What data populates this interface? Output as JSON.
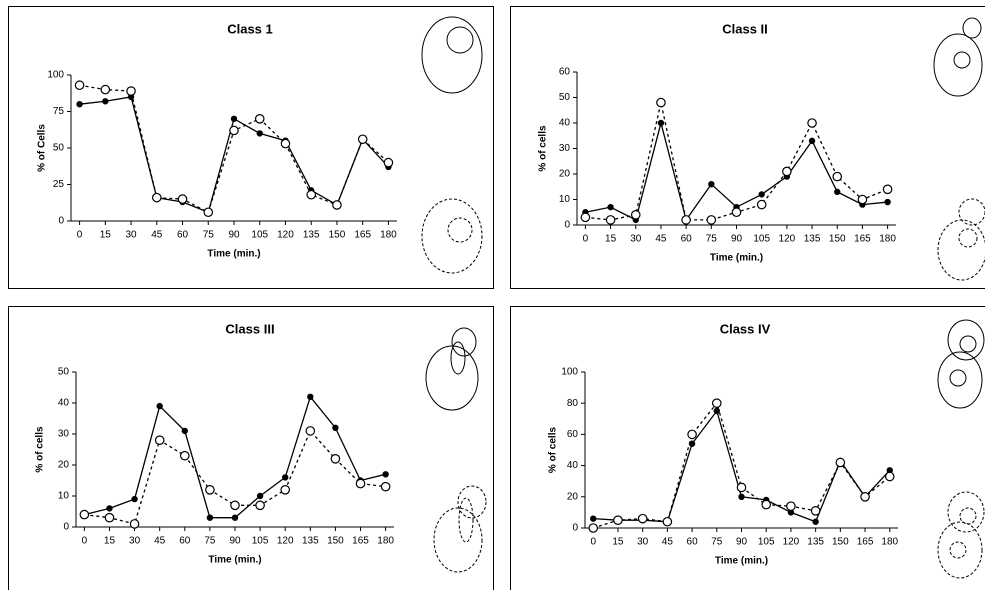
{
  "chart_data": [
    {
      "type": "line",
      "title": "Class 1",
      "xlabel": "Time (min.)",
      "ylabel": "% of Cells",
      "x": [
        0,
        15,
        30,
        45,
        60,
        75,
        90,
        105,
        120,
        135,
        150,
        165,
        180
      ],
      "xlim": [
        -5,
        185
      ],
      "xticks": [
        0,
        15,
        30,
        45,
        60,
        75,
        90,
        105,
        120,
        135,
        150,
        165,
        180
      ],
      "ylim": [
        0,
        100
      ],
      "yticks": [
        0,
        25,
        50,
        75,
        100
      ],
      "series": [
        {
          "color": "#000000",
          "line_style": "solid",
          "marker": "filled",
          "values": [
            80,
            82,
            85,
            16,
            13,
            6,
            70,
            60,
            55,
            21,
            11,
            56,
            37
          ]
        },
        {
          "color": "#000000",
          "line_style": "dashed",
          "marker": "open",
          "values": [
            93,
            90,
            89,
            16,
            15,
            6,
            62,
            70,
            53,
            18,
            11,
            56,
            40
          ]
        }
      ]
    },
    {
      "type": "line",
      "title": "Class II",
      "xlabel": "Time (min.)",
      "ylabel": "% of cells",
      "x": [
        0,
        15,
        30,
        45,
        60,
        75,
        90,
        105,
        120,
        135,
        150,
        165,
        180
      ],
      "xlim": [
        -5,
        185
      ],
      "xticks": [
        0,
        15,
        30,
        45,
        60,
        75,
        90,
        105,
        120,
        135,
        150,
        165,
        180
      ],
      "ylim": [
        0,
        60
      ],
      "yticks": [
        0,
        10,
        20,
        30,
        40,
        50,
        60
      ],
      "series": [
        {
          "color": "#000000",
          "line_style": "solid",
          "marker": "filled",
          "values": [
            5,
            7,
            2,
            40,
            2,
            16,
            7,
            12,
            19,
            33,
            13,
            8,
            9
          ]
        },
        {
          "color": "#000000",
          "line_style": "dashed",
          "marker": "open",
          "values": [
            3,
            2,
            4,
            48,
            2,
            2,
            5,
            8,
            21,
            40,
            19,
            10,
            14
          ]
        }
      ]
    },
    {
      "type": "line",
      "title": "Class III",
      "xlabel": "Time (min.)",
      "ylabel": "% of cells",
      "x": [
        0,
        15,
        30,
        45,
        60,
        75,
        90,
        105,
        120,
        135,
        150,
        165,
        180
      ],
      "xlim": [
        -5,
        185
      ],
      "xticks": [
        0,
        15,
        30,
        45,
        60,
        75,
        90,
        105,
        120,
        135,
        150,
        165,
        180
      ],
      "ylim": [
        0,
        50
      ],
      "yticks": [
        0,
        10,
        20,
        30,
        40,
        50
      ],
      "series": [
        {
          "color": "#000000",
          "line_style": "solid",
          "marker": "filled",
          "values": [
            4,
            6,
            9,
            39,
            31,
            3,
            3,
            10,
            16,
            42,
            32,
            15,
            17
          ]
        },
        {
          "color": "#000000",
          "line_style": "dashed",
          "marker": "open",
          "values": [
            4,
            3,
            1,
            28,
            23,
            12,
            7,
            7,
            12,
            31,
            22,
            14,
            13
          ]
        }
      ]
    },
    {
      "type": "line",
      "title": "Class IV",
      "xlabel": "Time (min.)",
      "ylabel": "% of cells",
      "x": [
        0,
        15,
        30,
        45,
        60,
        75,
        90,
        105,
        120,
        135,
        150,
        165,
        180
      ],
      "xlim": [
        -5,
        185
      ],
      "xticks": [
        0,
        15,
        30,
        45,
        60,
        75,
        90,
        105,
        120,
        135,
        150,
        165,
        180
      ],
      "ylim": [
        0,
        100
      ],
      "yticks": [
        0,
        20,
        40,
        60,
        80,
        100
      ],
      "series": [
        {
          "color": "#000000",
          "line_style": "solid",
          "marker": "filled",
          "values": [
            6,
            5,
            5,
            4,
            54,
            75,
            20,
            18,
            10,
            4,
            43,
            20,
            37
          ]
        },
        {
          "color": "#000000",
          "line_style": "dashed",
          "marker": "open",
          "values": [
            0,
            5,
            6,
            4,
            60,
            80,
            26,
            15,
            14,
            11,
            42,
            20,
            33
          ]
        }
      ]
    }
  ]
}
